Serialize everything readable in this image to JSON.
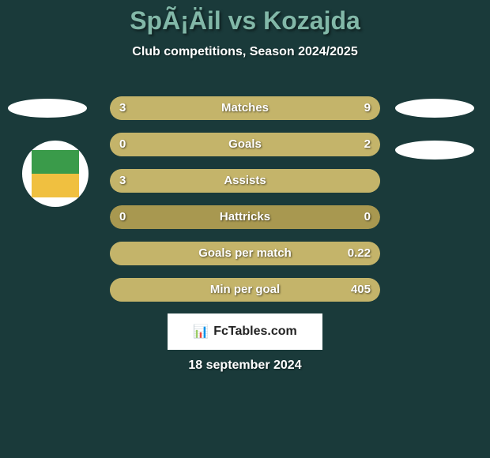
{
  "header": {
    "title": "SpÃ¡Äil vs Kozajda",
    "subtitle": "Club competitions, Season 2024/2025"
  },
  "colors": {
    "background": "#1a3a3a",
    "title_color": "#82b8a8",
    "bar_bg": "#a89850",
    "bar_fill": "#c4b46a",
    "text": "#ffffff"
  },
  "stats": [
    {
      "label": "Matches",
      "left_value": "3",
      "right_value": "9",
      "left_fill_pct": 25,
      "right_fill_pct": 75
    },
    {
      "label": "Goals",
      "left_value": "0",
      "right_value": "2",
      "left_fill_pct": 0,
      "right_fill_pct": 100
    },
    {
      "label": "Assists",
      "left_value": "3",
      "right_value": "",
      "left_fill_pct": 100,
      "right_fill_pct": 0
    },
    {
      "label": "Hattricks",
      "left_value": "0",
      "right_value": "0",
      "left_fill_pct": 0,
      "right_fill_pct": 0
    },
    {
      "label": "Goals per match",
      "left_value": "",
      "right_value": "0.22",
      "left_fill_pct": 0,
      "right_fill_pct": 100
    },
    {
      "label": "Min per goal",
      "left_value": "",
      "right_value": "405",
      "left_fill_pct": 0,
      "right_fill_pct": 100
    }
  ],
  "footer": {
    "logo_text": "FcTables.com",
    "date": "18 september 2024"
  }
}
